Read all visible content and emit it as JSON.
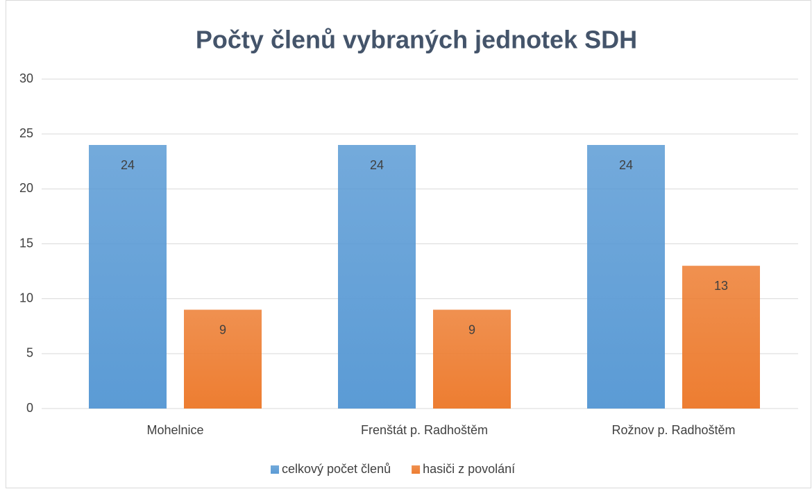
{
  "chart_data": {
    "type": "bar",
    "title": "Počty členů vybraných jednotek SDH",
    "categories": [
      "Mohelnice",
      "Frenštát p. Radhoštěm",
      "Rožnov p. Radhoštěm"
    ],
    "series": [
      {
        "name": "celkový počet členů",
        "color": "#5b9bd5",
        "values": [
          24,
          24,
          24
        ]
      },
      {
        "name": "hasiči z povolání",
        "color": "#ed7d31",
        "values": [
          9,
          9,
          13
        ]
      }
    ],
    "ylim": [
      0,
      30
    ],
    "yticks": [
      0,
      5,
      10,
      15,
      20,
      25,
      30
    ],
    "grid": true,
    "legend": "bottom"
  }
}
